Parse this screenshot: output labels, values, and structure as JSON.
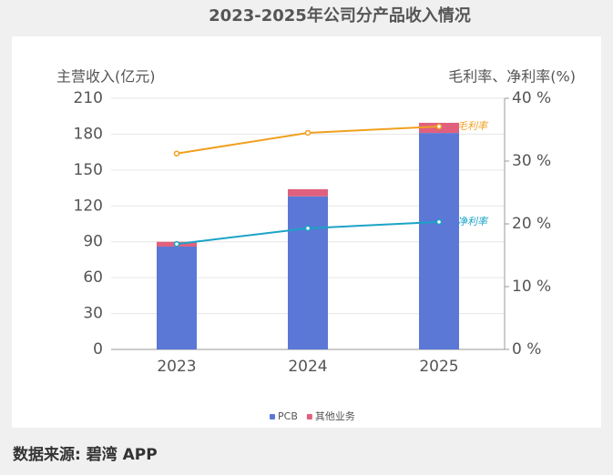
{
  "chart_data": {
    "type": "bar",
    "stacked": true,
    "title": "2023-2025年公司分产品收入情况",
    "y_label": "主营收入(亿元)",
    "y2_label": "毛利率、净利率(%)",
    "categories": [
      "2023",
      "2024",
      "2025"
    ],
    "series": [
      {
        "name": "PCB",
        "color": "#5b78d6",
        "values": [
          86,
          128,
          181
        ]
      },
      {
        "name": "其他业务",
        "color": "#e0607e",
        "values": [
          4,
          6,
          8.5
        ]
      },
      {
        "name": "毛利率",
        "type": "line",
        "axis": "y2",
        "color": "#f0a020",
        "values": [
          31.2,
          34.5,
          35.5
        ]
      },
      {
        "name": "净利率",
        "type": "line",
        "axis": "y2",
        "color": "#1ba3c6",
        "values": [
          16.8,
          19.3,
          20.3
        ]
      }
    ],
    "ylim": [
      0,
      210
    ],
    "yticks": [
      0,
      30,
      60,
      90,
      120,
      150,
      180,
      210
    ],
    "y2lim": [
      0,
      40
    ],
    "y2ticks": [
      {
        "value": 0,
        "label": "0 %"
      },
      {
        "value": 10,
        "label": "10 %"
      },
      {
        "value": 20,
        "label": "20 %"
      },
      {
        "value": 30,
        "label": "30 %"
      },
      {
        "value": 40,
        "label": "40 %"
      }
    ],
    "grid": true,
    "legend": "bottom"
  },
  "footer": {
    "source": "数据来源: 碧湾 APP"
  }
}
